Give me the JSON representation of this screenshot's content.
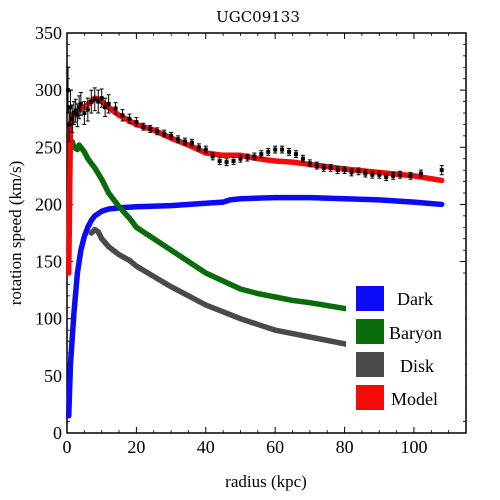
{
  "chart_data": {
    "type": "line",
    "title": "UGC09133",
    "xlabel": "radius (kpc)",
    "ylabel": "rotation speed (km/s)",
    "xlim": [
      0,
      115
    ],
    "ylim": [
      0,
      350
    ],
    "xticks": [
      "0",
      "20",
      "40",
      "60",
      "80",
      "100"
    ],
    "yticks": [
      "0",
      "50",
      "100",
      "150",
      "200",
      "250",
      "300",
      "350"
    ],
    "grid": false,
    "legend_position": "bottom-right",
    "series": [
      {
        "name": "Dark",
        "color": "#0b0bf5",
        "x": [
          0.5,
          1,
          2,
          3,
          4,
          5,
          6,
          7,
          8,
          10,
          12,
          15,
          20,
          30,
          40,
          45,
          47,
          50,
          60,
          70,
          80,
          90,
          100,
          108
        ],
        "y": [
          15,
          60,
          105,
          140,
          160,
          172,
          180,
          186,
          190,
          194,
          196,
          197,
          198,
          199,
          201,
          202,
          204,
          205,
          206,
          206,
          205,
          204,
          202,
          200
        ]
      },
      {
        "name": "Baryon",
        "color": "#0a6b0a",
        "x": [
          1,
          1.5,
          2,
          3,
          3.5,
          4,
          5,
          6,
          8,
          10,
          12,
          15,
          18,
          20,
          25,
          30,
          35,
          40,
          45,
          50,
          55,
          60,
          65,
          70,
          80,
          90,
          100,
          108
        ],
        "y": [
          250,
          255,
          250,
          248,
          252,
          250,
          246,
          240,
          232,
          222,
          210,
          198,
          188,
          180,
          170,
          160,
          150,
          140,
          133,
          126,
          122,
          119,
          116,
          114,
          109,
          105,
          101,
          98
        ]
      },
      {
        "name": "Disk",
        "color": "#4a4a4a",
        "x": [
          7,
          8,
          9,
          10,
          12,
          15,
          18,
          20,
          25,
          30,
          35,
          40,
          45,
          50,
          55,
          60,
          65,
          70,
          80,
          90,
          100,
          108
        ],
        "y": [
          175,
          178,
          176,
          170,
          163,
          156,
          151,
          146,
          137,
          128,
          120,
          112,
          106,
          100,
          95,
          90,
          87,
          84,
          78,
          73,
          69,
          66
        ]
      },
      {
        "name": "Model",
        "color": "#f50a0a",
        "x": [
          0.5,
          1,
          1.5,
          2,
          3,
          5,
          7,
          8,
          9,
          10,
          12,
          15,
          20,
          25,
          30,
          35,
          40,
          45,
          50,
          55,
          60,
          65,
          70,
          75,
          80,
          90,
          100,
          108
        ],
        "y": [
          140,
          270,
          278,
          280,
          282,
          285,
          290,
          293,
          292,
          290,
          285,
          278,
          270,
          265,
          258,
          252,
          245,
          243,
          243,
          240,
          238,
          237,
          235,
          233,
          231,
          228,
          225,
          221
        ]
      }
    ],
    "observed": {
      "x": [
        0.3,
        0.6,
        1,
        1.5,
        2,
        2.5,
        3,
        3.5,
        4,
        5,
        6,
        7,
        8,
        9,
        10,
        11,
        12,
        14,
        16,
        18,
        20,
        22,
        24,
        26,
        28,
        30,
        32,
        34,
        36,
        38,
        40,
        42,
        44,
        46,
        48,
        50,
        52,
        54,
        56,
        58,
        60,
        62,
        64,
        66,
        68,
        70,
        72,
        74,
        76,
        78,
        80,
        82,
        84,
        86,
        88,
        90,
        92,
        94,
        96,
        99,
        102,
        108
      ],
      "y": [
        300,
        270,
        285,
        275,
        280,
        282,
        278,
        285,
        288,
        280,
        283,
        290,
        292,
        290,
        293,
        285,
        288,
        284,
        278,
        275,
        272,
        268,
        266,
        264,
        262,
        260,
        257,
        255,
        254,
        250,
        248,
        242,
        238,
        237,
        238,
        240,
        241,
        242,
        244,
        246,
        248,
        248,
        246,
        244,
        240,
        236,
        234,
        232,
        232,
        230,
        230,
        228,
        229,
        227,
        226,
        226,
        224,
        225,
        226,
        225,
        227,
        230
      ],
      "err": [
        20,
        15,
        15,
        12,
        10,
        10,
        10,
        10,
        10,
        10,
        10,
        10,
        10,
        10,
        8,
        8,
        8,
        5,
        5,
        4,
        4,
        3,
        3,
        3,
        3,
        3,
        3,
        3,
        3,
        3,
        3,
        3,
        3,
        3,
        3,
        3,
        3,
        3,
        3,
        3,
        3,
        3,
        3,
        3,
        3,
        3,
        3,
        3,
        3,
        3,
        3,
        3,
        3,
        3,
        3,
        3,
        3,
        3,
        3,
        3,
        3,
        4
      ]
    }
  }
}
